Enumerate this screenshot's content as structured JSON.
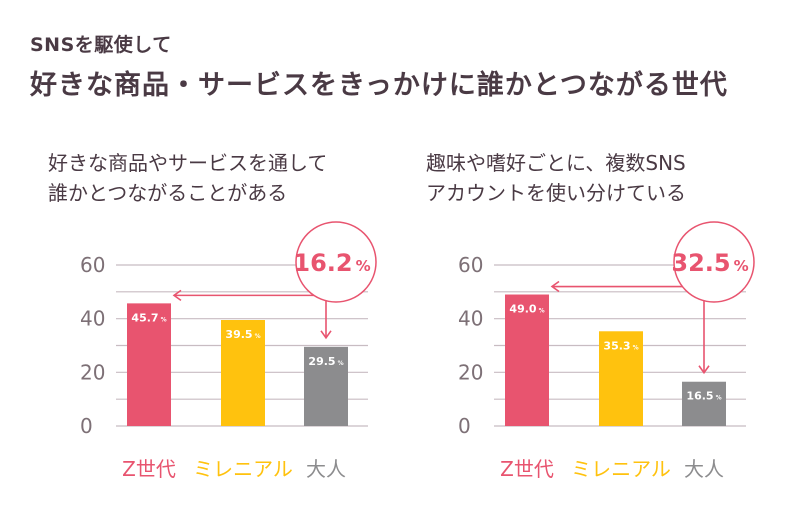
{
  "header": {
    "subtitle": "SNSを駆使して",
    "title": "好きな商品・サービスをきっかけに誰かとつながる世代"
  },
  "colors": {
    "z": "#e8546f",
    "millennial": "#ffc20e",
    "adult": "#8c8c8e",
    "accent": "#e8546f",
    "grid": "#c8bcc2",
    "axis_text": "#7d7076"
  },
  "chart_data": [
    {
      "type": "bar",
      "heading_line1": "好きな商品やサービスを通して",
      "heading_line2": "誰かとつながることがある",
      "categories": [
        "Z世代",
        "ミレニアル",
        "大人"
      ],
      "values": [
        45.7,
        39.5,
        29.5
      ],
      "value_labels": [
        "45.7",
        "39.5",
        "29.5"
      ],
      "unit": "%",
      "ylim": [
        0,
        60
      ],
      "yticks": [
        0,
        20,
        40,
        60
      ],
      "grid": true,
      "callout": {
        "value": "16.2",
        "unit": "%"
      }
    },
    {
      "type": "bar",
      "heading_line1": "趣味や嗜好ごとに、複数SNS",
      "heading_line2": "アカウントを使い分けている",
      "categories": [
        "Z世代",
        "ミレニアル",
        "大人"
      ],
      "values": [
        49.0,
        35.3,
        16.5
      ],
      "value_labels": [
        "49.0",
        "35.3",
        "16.5"
      ],
      "unit": "%",
      "ylim": [
        0,
        60
      ],
      "yticks": [
        0,
        20,
        40,
        60
      ],
      "grid": true,
      "callout": {
        "value": "32.5",
        "unit": "%"
      }
    }
  ]
}
